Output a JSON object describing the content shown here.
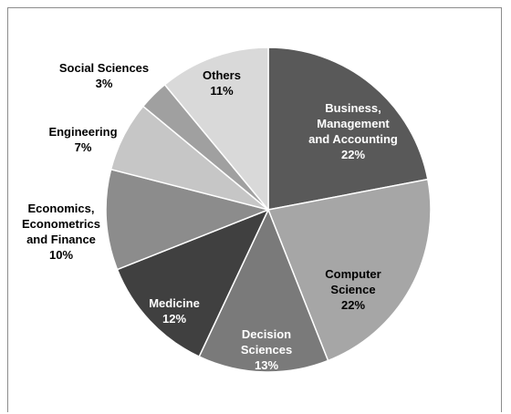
{
  "chart_data": {
    "type": "pie",
    "title": "",
    "legend": "none",
    "slices": [
      {
        "lines": [
          "Business,",
          "Management",
          "and Accounting",
          "22%"
        ],
        "value": 22,
        "color": "#595959",
        "text_color": "#ffffff"
      },
      {
        "lines": [
          "Computer",
          "Science",
          "22%"
        ],
        "value": 22,
        "color": "#a6a6a6",
        "text_color": "#000000"
      },
      {
        "lines": [
          "Decision",
          "Sciences",
          "13%"
        ],
        "value": 13,
        "color": "#7a7a7a",
        "text_color": "#ffffff"
      },
      {
        "lines": [
          "Medicine",
          "12%"
        ],
        "value": 12,
        "color": "#404040",
        "text_color": "#ffffff"
      },
      {
        "lines": [
          "Economics,",
          "Econometrics",
          "and Finance",
          "10%"
        ],
        "value": 10,
        "color": "#8c8c8c",
        "text_color": "#000000"
      },
      {
        "lines": [
          "Engineering",
          "7%"
        ],
        "value": 7,
        "color": "#c6c6c6",
        "text_color": "#000000"
      },
      {
        "lines": [
          "Social Sciences",
          "3%"
        ],
        "value": 3,
        "color": "#a0a0a0",
        "text_color": "#000000"
      },
      {
        "lines": [
          "Others",
          "11%"
        ],
        "value": 11,
        "color": "#d9d9d9",
        "text_color": "#000000"
      }
    ]
  }
}
